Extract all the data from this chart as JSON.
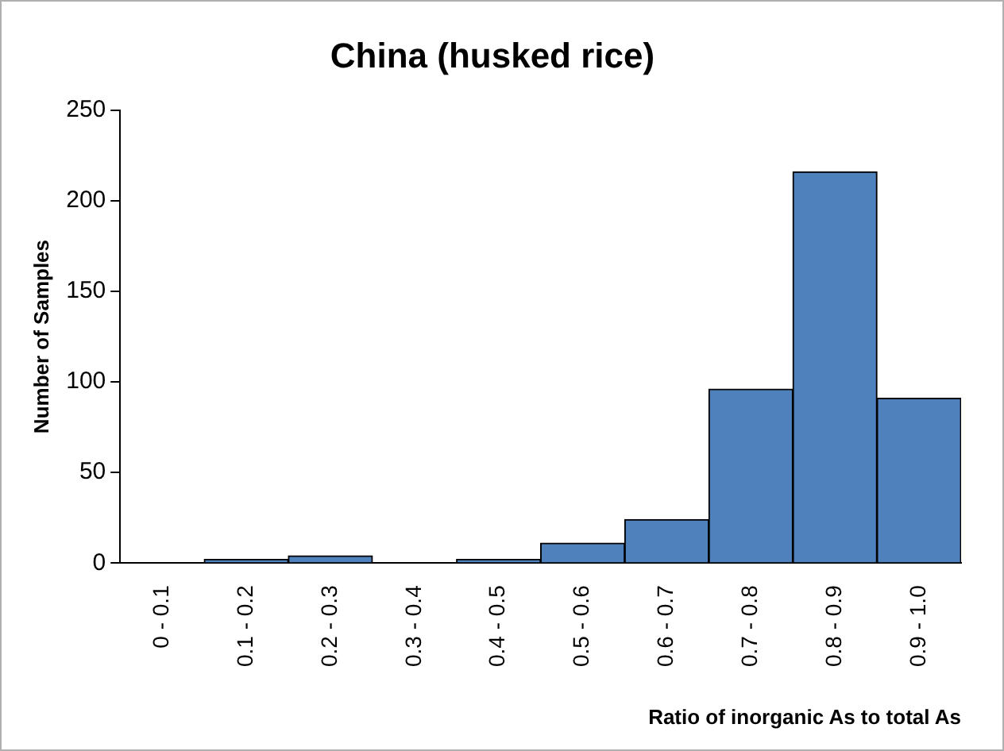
{
  "chart_data": {
    "type": "bar",
    "title": "China (husked rice)",
    "xlabel": "Ratio of inorganic As to total As",
    "ylabel": "Number of Samples",
    "categories": [
      "0 - 0.1",
      "0.1 - 0.2",
      "0.2 - 0.3",
      "0.3 - 0.4",
      "0.4 - 0.5",
      "0.5 - 0.6",
      "0.6 - 0.7",
      "0.7 - 0.8",
      "0.8 - 0.9",
      "0.9 - 1.0"
    ],
    "values": [
      0,
      2,
      4,
      0,
      2,
      11,
      24,
      96,
      216,
      91
    ],
    "color": "#4f81bd",
    "ylim": [
      0,
      250
    ],
    "yticks": [
      0,
      50,
      100,
      150,
      200,
      250
    ],
    "grid": false,
    "legend": false
  }
}
